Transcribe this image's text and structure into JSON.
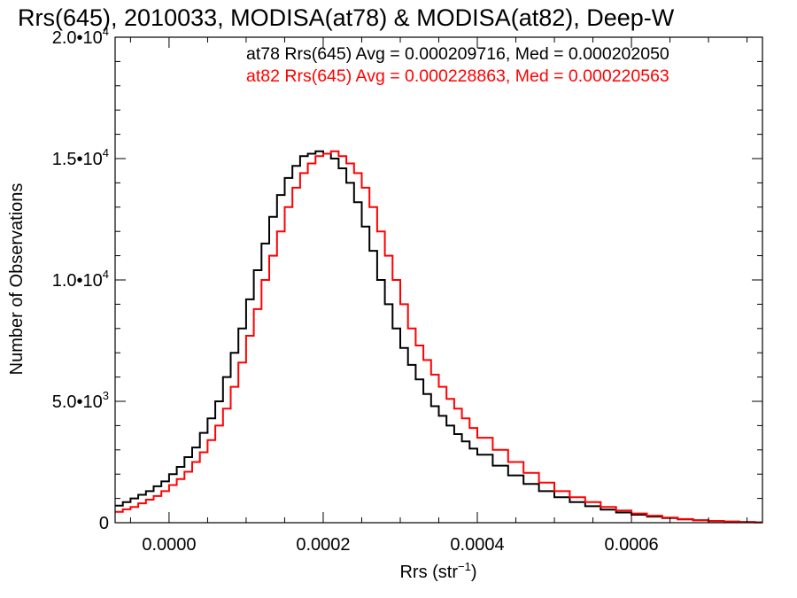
{
  "chart_data": {
    "type": "line",
    "step": true,
    "title": "Rrs(645), 2010033, MODISA(at78) & MODISA(at82), Deep-W",
    "xlabel": "Rrs (str",
    "xlabel_sup": "−1",
    "xlabel_close": ")",
    "ylabel": "Number of Observations",
    "xlim": [
      -7e-05,
      0.00077
    ],
    "ylim": [
      0,
      20000
    ],
    "xticks": [
      {
        "value": 0.0,
        "label": "0.0000"
      },
      {
        "value": 0.0002,
        "label": "0.0002"
      },
      {
        "value": 0.0004,
        "label": "0.0004"
      },
      {
        "value": 0.0006,
        "label": "0.0006"
      }
    ],
    "yticks": [
      {
        "value": 0,
        "mant": "0",
        "exp": ""
      },
      {
        "value": 5000,
        "mant": "5.0•10",
        "exp": "3"
      },
      {
        "value": 10000,
        "mant": "1.0•10",
        "exp": "4"
      },
      {
        "value": 15000,
        "mant": "1.5•10",
        "exp": "4"
      },
      {
        "value": 20000,
        "mant": "2.0•10",
        "exp": "4"
      }
    ],
    "grid": false,
    "legend_position": "top-right",
    "annotations": [
      {
        "text": "at78 Rrs(645) Avg = 0.000209716, Med = 0.000202050",
        "color": "#000000"
      },
      {
        "text": "at82 Rrs(645) Avg = 0.000228863, Med = 0.000220563",
        "color": "#ff0000"
      }
    ],
    "series": [
      {
        "color": "#000000",
        "x": [
          -7e-05,
          -6e-05,
          -5e-05,
          -4e-05,
          -3e-05,
          -2e-05,
          -1e-05,
          0.0,
          1e-05,
          2e-05,
          3e-05,
          4e-05,
          5e-05,
          6e-05,
          7e-05,
          8e-05,
          9e-05,
          0.0001,
          0.00011,
          0.00012,
          0.00013,
          0.00014,
          0.00015,
          0.00016,
          0.00017,
          0.00018,
          0.00019,
          0.0002,
          0.00021,
          0.00022,
          0.00023,
          0.00024,
          0.00025,
          0.00026,
          0.00027,
          0.00028,
          0.00029,
          0.0003,
          0.00031,
          0.00032,
          0.00033,
          0.00034,
          0.00035,
          0.00036,
          0.00037,
          0.00038,
          0.00039,
          0.0004,
          0.00042,
          0.00044,
          0.00046,
          0.00048,
          0.0005,
          0.00052,
          0.00054,
          0.00056,
          0.00058,
          0.0006,
          0.00062,
          0.00064,
          0.00066,
          0.00068,
          0.0007,
          0.00072,
          0.00074,
          0.00076
        ],
        "y": [
          700,
          850,
          1000,
          1150,
          1300,
          1500,
          1700,
          2000,
          2300,
          2700,
          3100,
          3700,
          4300,
          5000,
          6000,
          7000,
          8000,
          9200,
          10400,
          11500,
          12600,
          13500,
          14200,
          14700,
          15100,
          15200,
          15300,
          15200,
          15000,
          14600,
          14000,
          13200,
          12200,
          11200,
          10000,
          9000,
          8000,
          7200,
          6500,
          5900,
          5300,
          4800,
          4400,
          4000,
          3650,
          3350,
          3050,
          2800,
          2350,
          1950,
          1600,
          1300,
          1050,
          850,
          680,
          540,
          420,
          330,
          250,
          190,
          140,
          100,
          70,
          45,
          25,
          15
        ]
      },
      {
        "color": "#ff0000",
        "x": [
          -7e-05,
          -6e-05,
          -5e-05,
          -4e-05,
          -3e-05,
          -2e-05,
          -1e-05,
          0.0,
          1e-05,
          2e-05,
          3e-05,
          4e-05,
          5e-05,
          6e-05,
          7e-05,
          8e-05,
          9e-05,
          0.0001,
          0.00011,
          0.00012,
          0.00013,
          0.00014,
          0.00015,
          0.00016,
          0.00017,
          0.00018,
          0.00019,
          0.0002,
          0.00021,
          0.00022,
          0.00023,
          0.00024,
          0.00025,
          0.00026,
          0.00027,
          0.00028,
          0.00029,
          0.0003,
          0.00031,
          0.00032,
          0.00033,
          0.00034,
          0.00035,
          0.00036,
          0.00037,
          0.00038,
          0.00039,
          0.0004,
          0.00042,
          0.00044,
          0.00046,
          0.00048,
          0.0005,
          0.00052,
          0.00054,
          0.00056,
          0.00058,
          0.0006,
          0.00062,
          0.00064,
          0.00066,
          0.00068,
          0.0007,
          0.00072,
          0.00074,
          0.00076
        ],
        "y": [
          450,
          550,
          650,
          800,
          950,
          1100,
          1300,
          1550,
          1800,
          2100,
          2500,
          2900,
          3400,
          4000,
          4700,
          5600,
          6600,
          7700,
          8800,
          10000,
          11000,
          12000,
          13000,
          13800,
          14400,
          14800,
          15100,
          15200,
          15300,
          15100,
          14800,
          14400,
          13800,
          13000,
          12000,
          11000,
          10000,
          9000,
          8000,
          7300,
          6700,
          6100,
          5600,
          5100,
          4700,
          4300,
          3900,
          3500,
          3000,
          2500,
          2050,
          1650,
          1300,
          1050,
          850,
          650,
          500,
          380,
          290,
          210,
          150,
          100,
          70,
          45,
          25,
          15
        ]
      }
    ]
  }
}
